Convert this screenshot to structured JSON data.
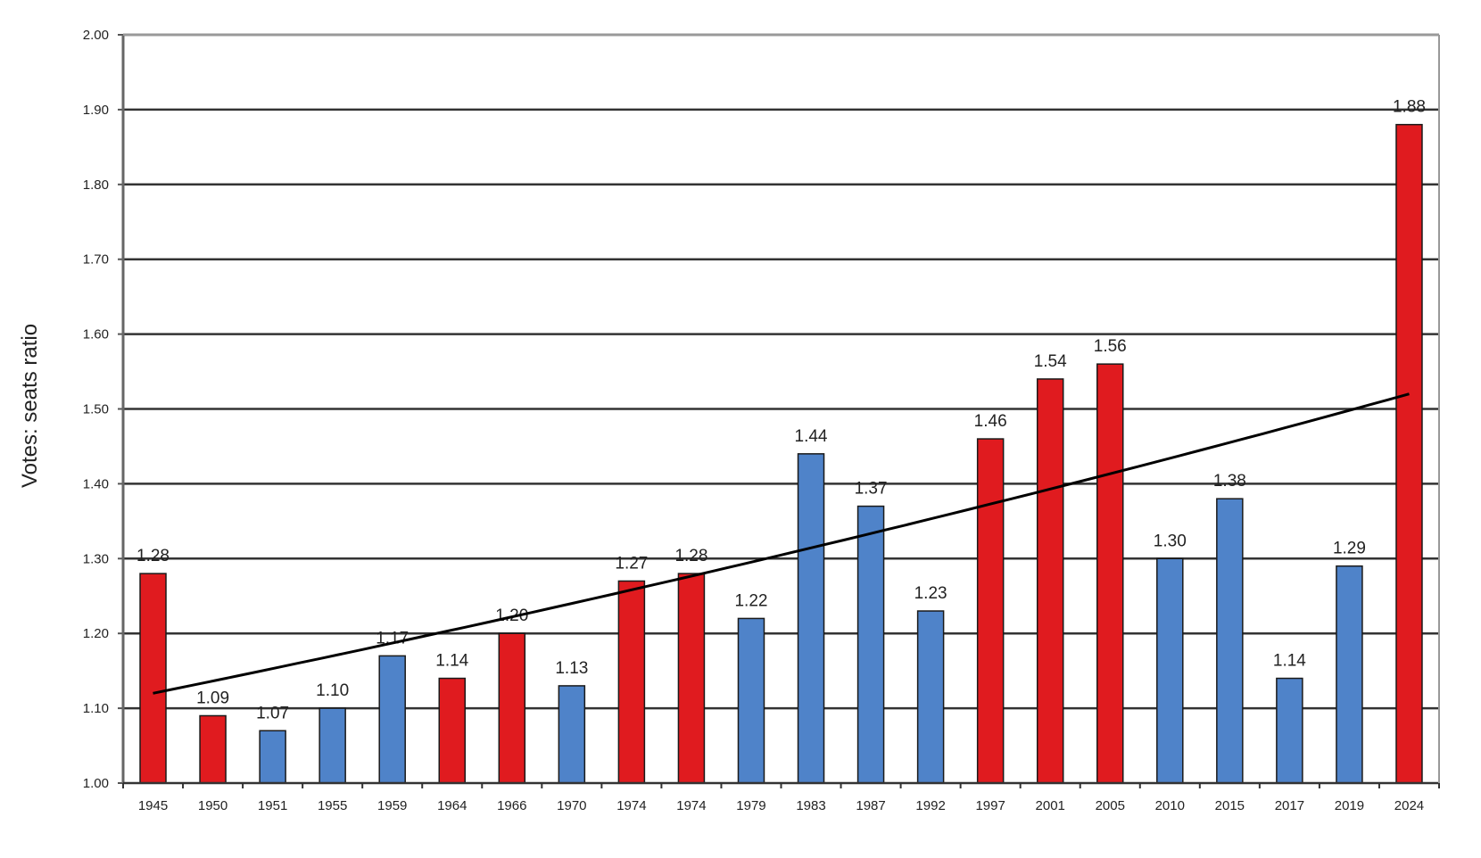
{
  "chart_data": {
    "type": "bar",
    "title": "",
    "xlabel": "",
    "ylabel": "Votes: seats ratio",
    "ylim": [
      1.0,
      2.0
    ],
    "yticks": [
      "1.00",
      "1.10",
      "1.20",
      "1.30",
      "1.40",
      "1.50",
      "1.60",
      "1.70",
      "1.80",
      "1.90",
      "2.00"
    ],
    "grid": true,
    "legend": null,
    "categories": [
      "1945",
      "1950",
      "1951",
      "1955",
      "1959",
      "1964",
      "1966",
      "1970",
      "1974",
      "1974",
      "1979",
      "1983",
      "1987",
      "1992",
      "1997",
      "2001",
      "2005",
      "2010",
      "2015",
      "2017",
      "2019",
      "2024"
    ],
    "values": [
      1.28,
      1.09,
      1.07,
      1.1,
      1.17,
      1.14,
      1.2,
      1.13,
      1.27,
      1.28,
      1.22,
      1.44,
      1.37,
      1.23,
      1.46,
      1.54,
      1.56,
      1.3,
      1.38,
      1.14,
      1.29,
      1.88
    ],
    "labels": [
      "1.28",
      "1.09",
      "1.07",
      "1.10",
      "1.17",
      "1.14",
      "1.20",
      "1.13",
      "1.27",
      "1.28",
      "1.22",
      "1.44",
      "1.37",
      "1.23",
      "1.46",
      "1.54",
      "1.56",
      "1.30",
      "1.38",
      "1.14",
      "1.29",
      "1.88"
    ],
    "bar_party": [
      "red",
      "red",
      "blue",
      "blue",
      "blue",
      "red",
      "red",
      "blue",
      "red",
      "red",
      "blue",
      "blue",
      "blue",
      "blue",
      "red",
      "red",
      "red",
      "blue",
      "blue",
      "blue",
      "blue",
      "red"
    ],
    "trendline": {
      "start_value": 1.12,
      "end_value": 1.52,
      "shape": "slightly exponential"
    }
  },
  "colors": {
    "red": "#e01b1f",
    "blue": "#4f83c9",
    "bar_border": "#1a1a1a",
    "grid": "#333333",
    "trend": "#000000"
  }
}
